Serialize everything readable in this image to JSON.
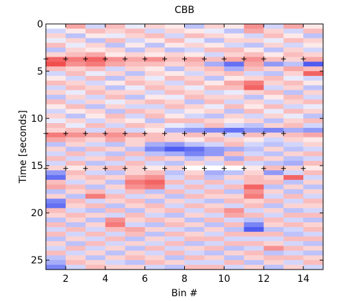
{
  "chart_data": {
    "type": "heatmap",
    "title": "CBB",
    "xlabel": "Bin #",
    "ylabel": "Time [seconds]",
    "xlim": [
      1,
      15
    ],
    "ylim": [
      0,
      26
    ],
    "y_reversed": true,
    "x_ticks": [
      2,
      4,
      6,
      8,
      10,
      12,
      14
    ],
    "x_tick_labels": [
      "2",
      "4",
      "6",
      "8",
      "10",
      "12",
      "14"
    ],
    "y_ticks": [
      0,
      5,
      10,
      15,
      20,
      25
    ],
    "y_tick_labels": [
      "0",
      "5",
      "10",
      "15",
      "20",
      "25"
    ],
    "grid": false,
    "colormap": {
      "negative": "#2233ee",
      "zero": "#ffffff",
      "positive": "#ee2222"
    },
    "bins": [
      1,
      2,
      3,
      4,
      5,
      6,
      7,
      8,
      9,
      10,
      11,
      12,
      13,
      14
    ],
    "rows": [
      {
        "t": 0.0,
        "values": [
          0.0,
          0.4,
          -0.2,
          0.3,
          -0.1,
          0.2,
          0.1,
          -0.3,
          0.2,
          0.1,
          0.5,
          -0.2,
          0.4,
          0.1
        ]
      },
      {
        "t": 0.5,
        "values": [
          -0.2,
          0.1,
          0.3,
          0.2,
          0.3,
          -0.2,
          0.2,
          0.1,
          -0.1,
          -0.3,
          0.4,
          0.2,
          -0.2,
          0.3
        ]
      },
      {
        "t": 1.0,
        "values": [
          0.2,
          -0.3,
          0.1,
          -0.1,
          0.2,
          0.3,
          -0.2,
          0.3,
          0.2,
          0.1,
          -0.2,
          0.3,
          0.1,
          -0.3
        ]
      },
      {
        "t": 1.5,
        "values": [
          -0.1,
          0.2,
          -0.3,
          0.3,
          -0.2,
          0.1,
          0.3,
          -0.1,
          -0.3,
          0.2,
          0.2,
          -0.1,
          0.3,
          0.2
        ]
      },
      {
        "t": 2.0,
        "values": [
          0.3,
          -0.1,
          0.2,
          -0.3,
          0.1,
          -0.3,
          0.1,
          0.2,
          0.1,
          -0.2,
          -0.3,
          0.2,
          -0.2,
          0.1
        ]
      },
      {
        "t": 2.5,
        "values": [
          -0.3,
          0.2,
          0.1,
          0.2,
          -0.3,
          0.2,
          -0.3,
          -0.2,
          0.3,
          0.3,
          0.1,
          -0.3,
          0.2,
          -0.2
        ]
      },
      {
        "t": 3.0,
        "values": [
          0.2,
          0.3,
          0.4,
          0.1,
          0.2,
          0.1,
          0.2,
          0.1,
          -0.2,
          0.2,
          0.3,
          0.1,
          0.3,
          0.2
        ]
      },
      {
        "t": 3.5,
        "values": [
          0.7,
          0.6,
          0.7,
          0.5,
          0.4,
          0.5,
          0.3,
          0.4,
          0.3,
          0.4,
          0.5,
          0.3,
          0.2,
          0.4
        ]
      },
      {
        "t": 4.0,
        "values": [
          0.8,
          0.5,
          0.6,
          0.4,
          0.3,
          0.3,
          0.2,
          0.3,
          -0.4,
          -0.7,
          0.4,
          -0.5,
          -0.3,
          -0.8
        ]
      },
      {
        "t": 4.5,
        "values": [
          0.3,
          0.2,
          0.3,
          -0.2,
          0.2,
          0.1,
          -0.3,
          0.2,
          0.3,
          -0.4,
          0.3,
          0.2,
          0.4,
          0.3
        ]
      },
      {
        "t": 5.0,
        "values": [
          -0.2,
          0.3,
          -0.1,
          0.2,
          -0.3,
          0.2,
          0.1,
          -0.2,
          0.2,
          0.3,
          -0.2,
          -0.3,
          0.2,
          0.7
        ]
      },
      {
        "t": 5.5,
        "values": [
          0.1,
          -0.2,
          0.3,
          -0.3,
          0.2,
          -0.1,
          0.3,
          0.2,
          -0.3,
          0.1,
          0.2,
          0.3,
          -0.1,
          -0.2
        ]
      },
      {
        "t": 6.0,
        "values": [
          0.3,
          0.2,
          -0.2,
          0.1,
          0.3,
          0.2,
          -0.2,
          0.3,
          0.1,
          0.4,
          0.6,
          0.2,
          0.3,
          0.1
        ]
      },
      {
        "t": 6.5,
        "values": [
          -0.2,
          0.3,
          0.2,
          -0.3,
          -0.1,
          0.3,
          0.2,
          -0.1,
          0.3,
          0.3,
          0.7,
          -0.2,
          0.2,
          -0.3
        ]
      },
      {
        "t": 7.0,
        "values": [
          0.2,
          -0.1,
          0.3,
          0.2,
          0.2,
          -0.2,
          0.3,
          0.2,
          -0.2,
          -0.1,
          0.2,
          0.3,
          -0.3,
          0.2
        ]
      },
      {
        "t": 7.5,
        "values": [
          -0.3,
          0.2,
          -0.2,
          0.3,
          -0.3,
          0.1,
          -0.1,
          0.3,
          0.2,
          0.2,
          -0.3,
          0.1,
          0.3,
          -0.2
        ]
      },
      {
        "t": 8.0,
        "values": [
          0.3,
          -0.2,
          0.2,
          -0.1,
          0.2,
          0.3,
          0.2,
          -0.3,
          0.3,
          -0.2,
          0.2,
          -0.2,
          0.2,
          0.3
        ]
      },
      {
        "t": 8.5,
        "values": [
          0.1,
          0.3,
          -0.3,
          0.2,
          -0.2,
          -0.2,
          0.3,
          0.2,
          -0.1,
          0.3,
          0.1,
          0.3,
          -0.2,
          -0.1
        ]
      },
      {
        "t": 9.0,
        "values": [
          -0.2,
          0.1,
          0.2,
          -0.3,
          0.3,
          0.2,
          -0.2,
          0.1,
          0.2,
          -0.3,
          0.3,
          -0.1,
          0.3,
          0.2
        ]
      },
      {
        "t": 9.5,
        "values": [
          0.2,
          -0.3,
          0.1,
          0.3,
          -0.2,
          0.3,
          0.1,
          -0.2,
          -0.3,
          0.2,
          -0.2,
          0.2,
          -0.1,
          -0.3
        ]
      },
      {
        "t": 10.0,
        "values": [
          -0.1,
          0.2,
          -0.2,
          0.2,
          0.1,
          -0.3,
          0.3,
          0.3,
          0.2,
          0.1,
          0.2,
          -0.3,
          0.2,
          0.3
        ]
      },
      {
        "t": 10.5,
        "values": [
          0.3,
          -0.1,
          0.3,
          -0.2,
          0.3,
          0.2,
          -0.1,
          -0.2,
          0.3,
          -0.2,
          -0.3,
          0.2,
          0.3,
          -0.2
        ]
      },
      {
        "t": 11.0,
        "values": [
          0.2,
          0.3,
          -0.2,
          0.3,
          -0.2,
          0.1,
          -0.4,
          -0.5,
          -0.6,
          -0.7,
          -0.5,
          -0.6,
          -0.4,
          -0.5
        ]
      },
      {
        "t": 11.5,
        "values": [
          0.6,
          0.5,
          0.4,
          0.5,
          0.4,
          0.3,
          0.2,
          0.3,
          0.2,
          -0.2,
          0.3,
          0.2,
          0.3,
          0.4
        ]
      },
      {
        "t": 12.0,
        "values": [
          0.4,
          0.3,
          0.2,
          0.4,
          0.2,
          0.3,
          0.2,
          0.1,
          0.3,
          0.2,
          0.1,
          -0.2,
          0.2,
          0.1
        ]
      },
      {
        "t": 12.5,
        "values": [
          -0.3,
          0.2,
          -0.2,
          -0.3,
          0.2,
          -0.4,
          -0.5,
          -0.3,
          -0.2,
          0.3,
          -0.2,
          -0.3,
          -0.2,
          0.2
        ]
      },
      {
        "t": 13.0,
        "values": [
          0.2,
          -0.3,
          0.3,
          0.2,
          -0.3,
          -0.6,
          -0.8,
          -0.7,
          -0.5,
          -0.4,
          -0.3,
          0.2,
          -0.3,
          -0.2
        ]
      },
      {
        "t": 13.5,
        "values": [
          -0.2,
          0.3,
          -0.2,
          -0.3,
          0.3,
          -0.3,
          -0.4,
          -0.6,
          -0.5,
          0.3,
          -0.2,
          -0.3,
          0.2,
          0.3
        ]
      },
      {
        "t": 14.0,
        "values": [
          0.3,
          -0.2,
          0.2,
          0.3,
          -0.2,
          0.3,
          0.2,
          -0.3,
          0.2,
          -0.4,
          0.3,
          0.2,
          -0.3,
          -0.2
        ]
      },
      {
        "t": 14.5,
        "values": [
          -0.2,
          0.3,
          -0.3,
          -0.2,
          0.3,
          -0.2,
          -0.3,
          0.2,
          -0.2,
          0.3,
          -0.2,
          -0.3,
          -0.4,
          0.3
        ]
      },
      {
        "t": 15.0,
        "values": [
          0.2,
          0.1,
          0.2,
          0.3,
          0.2,
          0.1,
          0.2,
          0.0,
          0.0,
          0.0,
          0.1,
          0.3,
          0.2,
          0.1
        ]
      },
      {
        "t": 15.5,
        "values": [
          -0.5,
          0.3,
          -0.2,
          -0.3,
          0.2,
          0.3,
          -0.3,
          0.2,
          -0.4,
          -0.3,
          0.2,
          -0.5,
          -0.2,
          0.3
        ]
      },
      {
        "t": 16.0,
        "values": [
          -0.7,
          0.2,
          0.3,
          0.2,
          0.4,
          0.5,
          -0.2,
          0.3,
          -0.3,
          0.2,
          0.3,
          0.2,
          0.7,
          -0.2
        ]
      },
      {
        "t": 16.5,
        "values": [
          0.3,
          -0.2,
          0.2,
          -0.3,
          0.6,
          0.7,
          0.3,
          -0.2,
          0.3,
          -0.2,
          0.3,
          0.3,
          -0.3,
          0.2
        ]
      },
      {
        "t": 17.0,
        "values": [
          0.4,
          0.3,
          -0.3,
          0.2,
          0.5,
          0.6,
          -0.2,
          0.3,
          -0.2,
          0.3,
          0.7,
          -0.3,
          0.2,
          -0.3
        ]
      },
      {
        "t": 17.5,
        "values": [
          -0.3,
          0.2,
          0.3,
          -0.2,
          0.3,
          -0.3,
          0.3,
          -0.2,
          0.3,
          -0.3,
          0.5,
          0.2,
          -0.3,
          0.2
        ]
      },
      {
        "t": 18.0,
        "values": [
          0.2,
          -0.3,
          0.6,
          0.3,
          -0.2,
          0.2,
          -0.3,
          0.3,
          0.2,
          0.2,
          0.6,
          -0.2,
          0.3,
          -0.2
        ]
      },
      {
        "t": 18.5,
        "values": [
          -0.6,
          0.3,
          -0.2,
          0.2,
          0.3,
          -0.3,
          0.2,
          -0.2,
          -0.3,
          0.3,
          0.2,
          0.3,
          -0.2,
          0.3
        ]
      },
      {
        "t": 19.0,
        "values": [
          -0.7,
          0.2,
          0.3,
          -0.3,
          0.2,
          0.3,
          -0.2,
          0.3,
          0.2,
          -0.2,
          0.3,
          -0.3,
          0.2,
          0.2
        ]
      },
      {
        "t": 19.5,
        "values": [
          0.3,
          -0.2,
          -0.3,
          0.3,
          -0.3,
          0.2,
          0.3,
          -0.2,
          0.3,
          0.5,
          -0.2,
          0.2,
          -0.3,
          -0.2
        ]
      },
      {
        "t": 20.0,
        "values": [
          0.2,
          0.3,
          0.2,
          -0.2,
          0.3,
          -0.2,
          -0.3,
          0.2,
          -0.2,
          0.4,
          0.3,
          -0.2,
          0.3,
          0.3
        ]
      },
      {
        "t": 20.5,
        "values": [
          -0.3,
          0.2,
          -0.3,
          0.5,
          0.2,
          0.3,
          0.2,
          -0.3,
          0.3,
          -0.2,
          -0.3,
          0.3,
          -0.2,
          -0.3
        ]
      },
      {
        "t": 21.0,
        "values": [
          0.3,
          -0.3,
          0.2,
          0.6,
          -0.2,
          -0.3,
          0.3,
          0.2,
          -0.3,
          0.3,
          -0.6,
          0.2,
          0.3,
          0.2
        ]
      },
      {
        "t": 21.5,
        "values": [
          -0.2,
          0.3,
          -0.2,
          0.3,
          0.4,
          0.2,
          -0.2,
          -0.3,
          0.2,
          -0.3,
          -0.8,
          -0.3,
          -0.2,
          0.3
        ]
      },
      {
        "t": 22.0,
        "values": [
          0.3,
          -0.2,
          0.3,
          -0.2,
          0.3,
          -0.3,
          0.3,
          0.2,
          -0.2,
          0.3,
          0.3,
          0.3,
          -0.3,
          -0.2
        ]
      },
      {
        "t": 22.5,
        "values": [
          -0.3,
          0.2,
          -0.2,
          0.3,
          -0.3,
          0.2,
          -0.2,
          0.3,
          0.3,
          -0.2,
          -0.2,
          -0.2,
          0.3,
          0.3
        ]
      },
      {
        "t": 23.0,
        "values": [
          0.2,
          -0.3,
          0.3,
          -0.2,
          0.2,
          -0.2,
          0.3,
          -0.3,
          -0.2,
          0.3,
          0.3,
          0.2,
          -0.2,
          -0.3
        ]
      },
      {
        "t": 23.5,
        "values": [
          -0.2,
          0.3,
          -0.2,
          0.2,
          -0.3,
          0.3,
          -0.2,
          0.2,
          0.3,
          -0.3,
          -0.2,
          0.5,
          0.3,
          0.2
        ]
      },
      {
        "t": 24.0,
        "values": [
          0.3,
          -0.2,
          0.2,
          -0.3,
          0.2,
          -0.2,
          0.3,
          -0.2,
          -0.3,
          0.2,
          0.3,
          -0.3,
          -0.2,
          -0.3
        ]
      },
      {
        "t": 24.5,
        "values": [
          -0.3,
          0.2,
          -0.3,
          0.2,
          0.3,
          0.2,
          -0.3,
          0.3,
          0.2,
          -0.3,
          0.2,
          0.3,
          0.3,
          0.2
        ]
      },
      {
        "t": 25.0,
        "values": [
          -0.4,
          0.3,
          0.2,
          -0.2,
          -0.3,
          0.3,
          0.2,
          -0.2,
          -0.2,
          0.3,
          -0.3,
          0.2,
          -0.2,
          0.3
        ]
      },
      {
        "t": 25.5,
        "values": [
          -0.6,
          -0.2,
          0.3,
          0.2,
          0.2,
          -0.2,
          -0.3,
          0.3,
          0.3,
          -0.2,
          0.2,
          -0.3,
          0.2,
          -0.2
        ]
      }
    ],
    "markers": {
      "symbol": "+",
      "rows": [
        {
          "t": 3.7,
          "bins": [
            1,
            2,
            3,
            4,
            5,
            6,
            7,
            8,
            9,
            10,
            11,
            12,
            13,
            14
          ]
        },
        {
          "t": 11.6,
          "bins": [
            1,
            2,
            3,
            4,
            5,
            6,
            7,
            8,
            9,
            10,
            11,
            12,
            13
          ]
        },
        {
          "t": 15.3,
          "bins": [
            1,
            2,
            3,
            4,
            5,
            6,
            7,
            8,
            9,
            10,
            11,
            12,
            13,
            14
          ]
        }
      ]
    }
  }
}
